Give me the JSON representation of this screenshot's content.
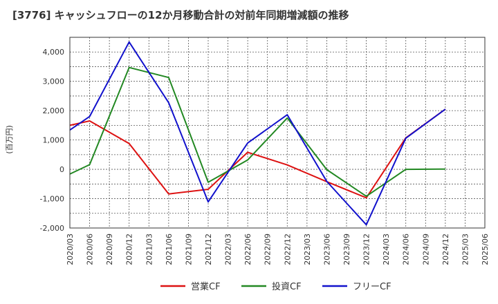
{
  "chart_data": {
    "type": "line",
    "title": "[3776]  キャッシュフローの12か月移動合計の対前年同期増減額の推移",
    "ylabel": "(百万円)",
    "xlabel": "",
    "ylim": [
      -2000,
      4500
    ],
    "yticks": [
      -2000,
      -1000,
      0,
      1000,
      2000,
      3000,
      4000
    ],
    "ytick_labels": [
      "-2,000",
      "-1,000",
      "0",
      "1,000",
      "2,000",
      "3,000",
      "4,000"
    ],
    "categories": [
      "2020/03",
      "2020/06",
      "2020/09",
      "2020/12",
      "2021/03",
      "2021/06",
      "2021/09",
      "2021/12",
      "2022/03",
      "2022/06",
      "2022/09",
      "2022/12",
      "2023/03",
      "2023/06",
      "2023/09",
      "2023/12",
      "2024/03",
      "2024/06",
      "2024/09",
      "2024/12",
      "2025/03",
      "2025/06"
    ],
    "grid": true,
    "legend_position": "bottom",
    "series": [
      {
        "name": "営業CF",
        "color": "#dd1111",
        "values": [
          1500,
          1650,
          null,
          880,
          null,
          -840,
          null,
          -680,
          null,
          580,
          null,
          150,
          null,
          -420,
          null,
          -970,
          null,
          1070,
          null,
          2050,
          null,
          null
        ]
      },
      {
        "name": "投資CF",
        "color": "#228822",
        "values": [
          -160,
          160,
          null,
          3470,
          null,
          3130,
          null,
          -440,
          null,
          320,
          null,
          1750,
          null,
          -10,
          null,
          -920,
          null,
          0,
          null,
          10,
          null,
          null
        ]
      },
      {
        "name": "フリーCF",
        "color": "#1111cc",
        "values": [
          1340,
          1800,
          null,
          4340,
          null,
          2270,
          null,
          -1110,
          null,
          900,
          null,
          1860,
          null,
          -410,
          null,
          -1890,
          null,
          1060,
          null,
          2050,
          null,
          null
        ]
      }
    ]
  }
}
